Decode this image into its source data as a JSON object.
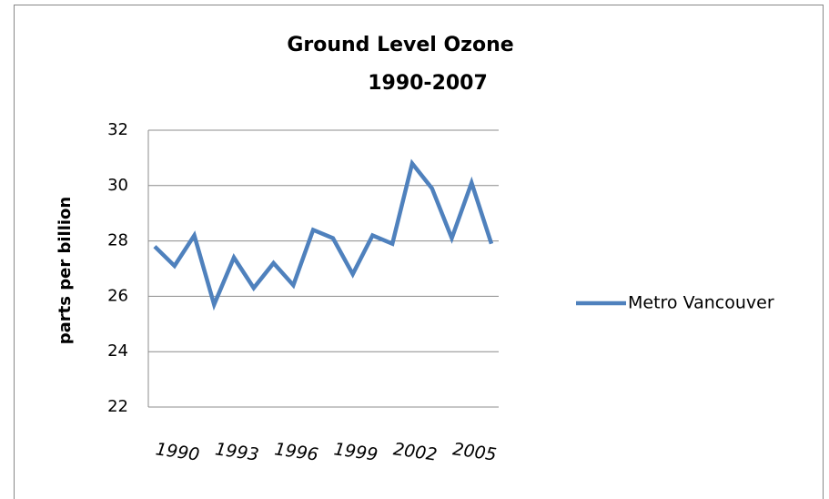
{
  "chart_data": {
    "type": "line",
    "title": "Ground Level Ozone",
    "subtitle": "1990-2007",
    "y_label": "parts  per billion",
    "categories": [
      "1990",
      null,
      null,
      "1993",
      null,
      null,
      "1996",
      null,
      null,
      "1999",
      null,
      null,
      "2002",
      null,
      null,
      "2005",
      null,
      null
    ],
    "series": [
      {
        "name": "Metro Vancouver",
        "color": "#4f81bd",
        "values": [
          27.8,
          27.1,
          28.2,
          25.7,
          27.4,
          26.3,
          27.2,
          26.4,
          28.4,
          28.1,
          26.8,
          28.2,
          27.9,
          30.8,
          29.9,
          28.1,
          30.1,
          27.9
        ]
      }
    ],
    "ylim": [
      22,
      32
    ],
    "yticks": [
      22,
      24,
      26,
      28,
      30,
      32
    ],
    "grid": true,
    "legend": "right"
  }
}
